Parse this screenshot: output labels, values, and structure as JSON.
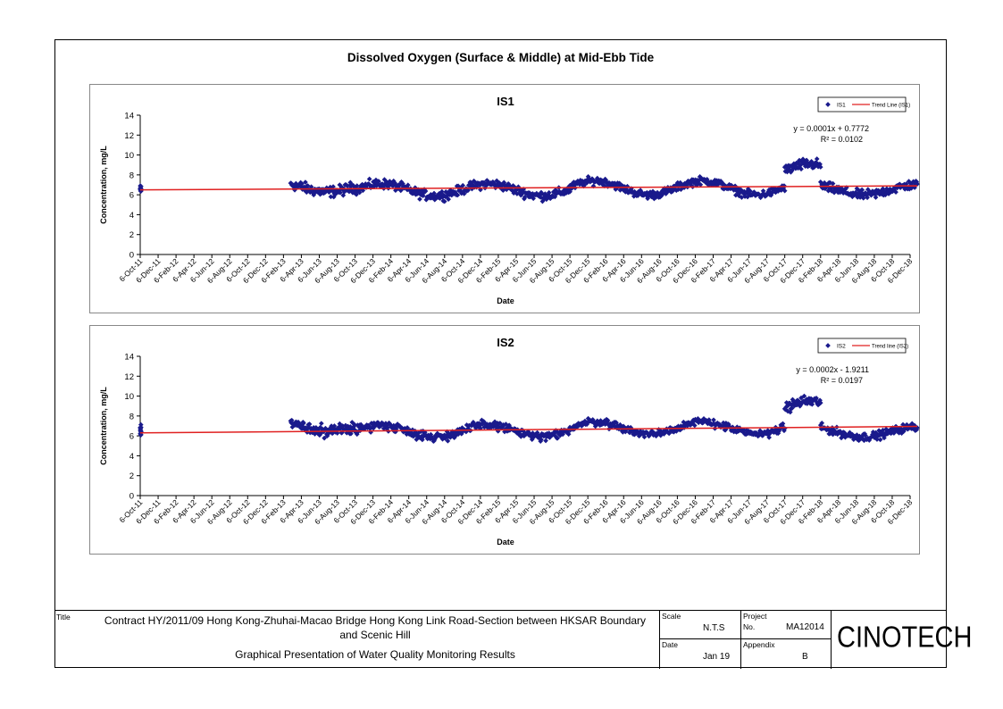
{
  "main_title": "Dissolved Oxygen (Surface & Middle) at Mid-Ebb Tide",
  "chart_data": [
    {
      "type": "scatter",
      "title": "IS1",
      "xlabel": "Date",
      "ylabel": "Concentration, mg/L",
      "ylim": [
        0,
        14
      ],
      "yticks": [
        0,
        2,
        4,
        6,
        8,
        10,
        12,
        14
      ],
      "x_tick_labels": [
        "6-Oct-11",
        "6-Dec-11",
        "6-Feb-12",
        "6-Apr-12",
        "6-Jun-12",
        "6-Aug-12",
        "6-Oct-12",
        "6-Dec-12",
        "6-Feb-13",
        "6-Apr-13",
        "6-Jun-13",
        "6-Aug-13",
        "6-Oct-13",
        "6-Dec-13",
        "6-Feb-14",
        "6-Apr-14",
        "6-Jun-14",
        "6-Aug-14",
        "6-Oct-14",
        "6-Dec-14",
        "6-Feb-15",
        "6-Apr-15",
        "6-Jun-15",
        "6-Aug-15",
        "6-Oct-15",
        "6-Dec-15",
        "6-Feb-16",
        "6-Apr-16",
        "6-Jun-16",
        "6-Aug-16",
        "6-Oct-16",
        "6-Dec-16",
        "6-Feb-17",
        "6-Apr-17",
        "6-Jun-17",
        "6-Aug-17",
        "6-Oct-17",
        "6-Dec-17",
        "6-Feb-18",
        "6-Apr-18",
        "6-Jun-18",
        "6-Aug-18",
        "6-Oct-18",
        "6-Dec-18"
      ],
      "legend": [
        "IS1",
        "Trend Line (IS1)"
      ],
      "legend_position": "top-right",
      "equation": "y = 0.0001x + 0.7772",
      "r2": "R² = 0.0102",
      "trend": {
        "start": 6.5,
        "end": 6.9
      },
      "grid": false,
      "marker_color": "#1a1a8c",
      "trend_color": "#e02020",
      "series": [
        {
          "name": "IS1",
          "segments": [
            {
              "from": 0.0,
              "to": 0.05,
              "base": 6.5,
              "amp": 0.5,
              "noise": 0.7,
              "n": 14
            },
            {
              "from": 8.4,
              "to": 12.0,
              "base": 6.8,
              "amp": 0.5,
              "noise": 0.8,
              "n": 110
            },
            {
              "from": 12.0,
              "to": 24.0,
              "base": 6.5,
              "amp": 0.6,
              "noise": 0.7,
              "n": 330
            },
            {
              "from": 24.0,
              "to": 36.0,
              "base": 6.7,
              "amp": 0.7,
              "noise": 0.6,
              "n": 330
            },
            {
              "from": 36.0,
              "to": 38.0,
              "base": 8.3,
              "amp": 0.8,
              "noise": 0.8,
              "n": 60
            },
            {
              "from": 38.0,
              "to": 43.4,
              "base": 6.5,
              "amp": 0.5,
              "noise": 0.7,
              "n": 150
            }
          ]
        }
      ]
    },
    {
      "type": "scatter",
      "title": "IS2",
      "xlabel": "Date",
      "ylabel": "Concentration, mg/L",
      "ylim": [
        0,
        14
      ],
      "yticks": [
        0,
        2,
        4,
        6,
        8,
        10,
        12,
        14
      ],
      "x_tick_labels": [
        "6-Oct-11",
        "6-Dec-11",
        "6-Feb-12",
        "6-Apr-12",
        "6-Jun-12",
        "6-Aug-12",
        "6-Oct-12",
        "6-Dec-12",
        "6-Feb-13",
        "6-Apr-13",
        "6-Jun-13",
        "6-Aug-13",
        "6-Oct-13",
        "6-Dec-13",
        "6-Feb-14",
        "6-Apr-14",
        "6-Jun-14",
        "6-Aug-14",
        "6-Oct-14",
        "6-Dec-14",
        "6-Feb-15",
        "6-Apr-15",
        "6-Jun-15",
        "6-Aug-15",
        "6-Oct-15",
        "6-Dec-15",
        "6-Feb-16",
        "6-Apr-16",
        "6-Jun-16",
        "6-Aug-16",
        "6-Oct-16",
        "6-Dec-16",
        "6-Feb-17",
        "6-Apr-17",
        "6-Jun-17",
        "6-Aug-17",
        "6-Oct-17",
        "6-Dec-17",
        "6-Feb-18",
        "6-Apr-18",
        "6-Jun-18",
        "6-Aug-18",
        "6-Oct-18",
        "6-Dec-18"
      ],
      "legend": [
        "IS2",
        "Trend line (IS2)"
      ],
      "legend_position": "top-right",
      "equation": "y = 0.0002x - 1.9211",
      "r2": "R² = 0.0197",
      "trend": {
        "start": 6.3,
        "end": 6.95
      },
      "grid": false,
      "marker_color": "#1a1a8c",
      "trend_color": "#e02020",
      "series": [
        {
          "name": "IS2",
          "segments": [
            {
              "from": 0.0,
              "to": 0.05,
              "base": 6.6,
              "amp": 0.5,
              "noise": 0.7,
              "n": 14
            },
            {
              "from": 8.4,
              "to": 12.0,
              "base": 7.0,
              "amp": 0.6,
              "noise": 0.9,
              "n": 110
            },
            {
              "from": 12.0,
              "to": 24.0,
              "base": 6.5,
              "amp": 0.6,
              "noise": 0.7,
              "n": 330
            },
            {
              "from": 24.0,
              "to": 36.0,
              "base": 6.8,
              "amp": 0.6,
              "noise": 0.6,
              "n": 330
            },
            {
              "from": 36.0,
              "to": 38.0,
              "base": 8.7,
              "amp": 0.8,
              "noise": 0.8,
              "n": 60
            },
            {
              "from": 38.0,
              "to": 43.4,
              "base": 6.4,
              "amp": 0.5,
              "noise": 0.6,
              "n": 150
            }
          ]
        }
      ]
    }
  ],
  "title_block": {
    "title_label": "Title",
    "title_line1": "Contract HY/2011/09 Hong Kong-Zhuhai-Macao Bridge Hong Kong Link Road-Section between HKSAR Boundary",
    "title_line2": "and Scenic Hill",
    "subtitle": "Graphical Presentation of Water Quality Monitoring Results",
    "scale_label": "Scale",
    "scale_value": "N.T.S",
    "project_label": "Project",
    "no_label": "No.",
    "project_value": "MA12014",
    "date_label": "Date",
    "date_value": "Jan 19",
    "appendix_label": "Appendix",
    "appendix_value": "B",
    "logo": "CINOTECH"
  }
}
